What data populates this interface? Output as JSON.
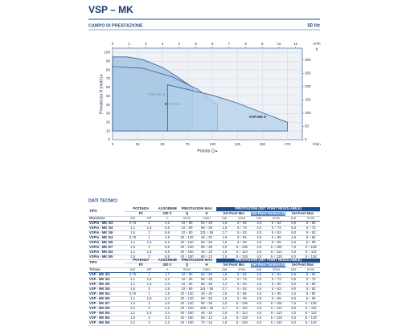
{
  "header": {
    "title": "VSP – MK"
  },
  "chart_data": {
    "type": "area",
    "title": "CAMPO DI PRESTAZIONE",
    "subtitle": "50 Hz",
    "x_label": "Portata Q ▸",
    "y_label": "Prevalenza H (metri) ▸",
    "x_unit": "l/min",
    "x2_unit": "m³/h",
    "y2_unit": "ft",
    "xlim": [
      0,
      190
    ],
    "xticks": [
      0,
      25,
      50,
      75,
      100,
      125,
      150,
      175
    ],
    "x2lim": [
      0,
      11.4
    ],
    "x2ticks": [
      0,
      1,
      2,
      3,
      4,
      5,
      6,
      7,
      8,
      9,
      10,
      11
    ],
    "ylim": [
      0,
      105
    ],
    "yticks": [
      0,
      10,
      20,
      30,
      40,
      50,
      60,
      70,
      80,
      90,
      100
    ],
    "y2lim": [
      0,
      344.5
    ],
    "y2ticks": [
      0,
      50,
      100,
      150,
      200,
      250,
      300
    ],
    "grid": true,
    "series": [
      {
        "name": "VSP-MK 3",
        "color": "#9dbfe0",
        "x": [
          0,
          15,
          30,
          50,
          65,
          80,
          80,
          0
        ],
        "values": [
          95,
          95,
          92,
          83,
          72,
          60,
          10,
          10
        ]
      },
      {
        "name": "VSP-MK 5",
        "color": "#a9c8e6",
        "x": [
          0,
          30,
          60,
          85,
          105,
          105,
          0
        ],
        "values": [
          84,
          82,
          72,
          58,
          40,
          10,
          10
        ]
      },
      {
        "name": "VSP-MK 8",
        "color": "#b4d0ea",
        "x": [
          55,
          100,
          125,
          150,
          175,
          175,
          55
        ],
        "values": [
          63,
          51,
          42,
          31,
          20,
          10,
          10
        ]
      }
    ]
  },
  "section": {
    "title": "DATI TECNICI"
  },
  "tables": [
    {
      "head": {
        "tipo": "TIPO",
        "potenza": "POTENZA",
        "p2": "P2",
        "assorbimenti": "ASSORBIMENTI",
        "voltage": "230 V",
        "prestazioni_max": "PRESTAZIONI MAX",
        "q": "Q",
        "h": "H",
        "prestazioni_set": "PRESTAZIONI (SET POINT REGOLABILE)",
        "set_min": "Set Point Min",
        "set_std": "Set Point Taratura Std",
        "set_max": "Set Point Max",
        "group": "Monofase",
        "units": [
          "kW",
          "HP",
          "A",
          "l/min",
          "metri",
          "bar",
          "l/min",
          "bar",
          "l/min",
          "bar",
          "l/min"
        ]
      },
      "rows": [
        [
          "VSPm - MK 3/3",
          "0,75",
          "1",
          "4,2",
          "10 ÷ 80",
          "52 ÷ 29",
          "1,6",
          "5 ÷ 52",
          "4,0",
          "5 ÷ 52",
          "5,5",
          "5 ÷ 52"
        ],
        [
          "VSPm - MK 3/4",
          "1,1",
          "1,5",
          "5,6",
          "10 ÷ 80",
          "68 ÷ 38",
          "1,6",
          "5 ÷ 73",
          "4,0",
          "5 ÷ 73",
          "6,5",
          "5 ÷ 73"
        ],
        [
          "VSPm - MK 3/6",
          "1,5",
          "2",
          "8,6",
          "10 ÷ 80",
          "101 ÷ 58",
          "2,7",
          "5 ÷ 83",
          "4,0",
          "5 ÷ 83",
          "9,0",
          "5 ÷ 83"
        ],
        [
          "VSPm - MK 5/4",
          "0,75",
          "1",
          "4,9",
          "20 ÷ 120",
          "48 ÷ 20",
          "1,6",
          "5 ÷ 85",
          "4,0",
          "5 ÷ 85",
          "4,5",
          "5 ÷ 85"
        ],
        [
          "VSPm - MK 5/5",
          "1,1",
          "1,5",
          "6,2",
          "20 ÷ 120",
          "60 ÷ 25",
          "1,6",
          "5 ÷ 99",
          "4,0",
          "5 ÷ 99",
          "5,5",
          "5 ÷ 99"
        ],
        [
          "VSPm - MK 5/7",
          "1,5",
          "2",
          "8,5",
          "20 ÷ 120",
          "85 ÷ 36",
          "2,0",
          "5 ÷ 105",
          "4,0",
          "5 ÷ 105",
          "7,5",
          "5 ÷ 105"
        ],
        [
          "VSPm - MK 8/4",
          "1,1",
          "1,5",
          "6,8",
          "40 ÷ 180",
          "46 ÷ 10",
          "1,6",
          "5 ÷ 113",
          "4,0",
          "5 ÷ 113",
          "4,0",
          "5 ÷ 113"
        ],
        [
          "VSPm - MK 8/5",
          "1,5",
          "2",
          "8,5",
          "40 ÷ 180",
          "58 ÷ 13",
          "1,6",
          "5 ÷ 128",
          "4,0",
          "5 ÷ 128",
          "5,0",
          "5 ÷ 128"
        ]
      ]
    },
    {
      "head": {
        "tipo": "TIPO",
        "potenza": "POTENZA",
        "p2": "P2",
        "assorbimenti": "ASSORBIMENTI",
        "voltage": "400 V",
        "prestazioni_max": "PRESTAZIONI MAX",
        "q": "Q",
        "h": "H",
        "prestazioni_set": "PRESTAZIONI (SET POINT REGOLABILE)",
        "set_min": "Set Point Min",
        "set_std": "Set Point Taratura Std",
        "set_max": "Set Point Max",
        "group": "Trifase",
        "units": [
          "kW",
          "HP",
          "A",
          "l/min",
          "metri",
          "bar",
          "l/min",
          "bar",
          "l/min",
          "bar",
          "l/min"
        ]
      },
      "rows": [
        [
          "VSP - MK 3/3",
          "0,75",
          "1",
          "1,7",
          "10 ÷ 80",
          "52 ÷ 29",
          "1,6",
          "5 ÷ 52",
          "4,0",
          "5 ÷ 52",
          "5,5",
          "5 ÷ 52"
        ],
        [
          "VSP - MK 3/4",
          "1,1",
          "1,5",
          "2,2",
          "10 ÷ 80",
          "68 ÷ 38",
          "1,6",
          "5 ÷ 73",
          "4,0",
          "5 ÷ 73",
          "6,5",
          "5 ÷ 73"
        ],
        [
          "VSP - MK 3/5",
          "1,1",
          "1,5",
          "2,3",
          "10 ÷ 80",
          "85 ÷ 48",
          "2,2",
          "5 ÷ 80",
          "4,0",
          "5 ÷ 80",
          "8,0",
          "5 ÷ 80"
        ],
        [
          "VSP - MK 3/6",
          "1,5",
          "2",
          "2,6",
          "10 ÷ 80",
          "101 ÷ 58",
          "2,7",
          "5 ÷ 83",
          "4,0",
          "5 ÷ 83",
          "9,0",
          "5 ÷ 83"
        ],
        [
          "VSP - MK 5/4",
          "0,75",
          "1",
          "1,8",
          "20 ÷ 120",
          "48 ÷ 20",
          "1,6",
          "5 ÷ 85",
          "4,0",
          "5 ÷ 85",
          "4,5",
          "5 ÷ 85"
        ],
        [
          "VSP - MK 5/5",
          "1,1",
          "1,5",
          "2,4",
          "20 ÷ 120",
          "60 ÷ 25",
          "1,6",
          "5 ÷ 99",
          "4,0",
          "5 ÷ 99",
          "5,5",
          "5 ÷ 99"
        ],
        [
          "VSP - MK 5/7",
          "1,5",
          "2",
          "3,0",
          "20 ÷ 120",
          "85 ÷ 36",
          "2,0",
          "5 ÷ 105",
          "4,0",
          "5 ÷ 105",
          "7,5",
          "5 ÷ 105"
        ],
        [
          "VSP - MK 5/9",
          "2,2",
          "3",
          "4,2",
          "20 ÷ 120",
          "108 ÷ 46",
          "2,7",
          "5 ÷ 110",
          "4,0",
          "5 ÷ 110",
          "9,5",
          "5 ÷ 110"
        ],
        [
          "VSP - MK 8/4",
          "1,1",
          "1,5",
          "2,4",
          "40 ÷ 180",
          "46 ÷ 10",
          "1,6",
          "5 ÷ 113",
          "4,0",
          "5 ÷ 113",
          "4,0",
          "5 ÷ 113"
        ],
        [
          "VSP - MK 8/5",
          "1,5",
          "2",
          "3,2",
          "40 ÷ 180",
          "58 ÷ 13",
          "1,6",
          "5 ÷ 128",
          "4,0",
          "5 ÷ 128",
          "5,0",
          "5 ÷ 128"
        ],
        [
          "VSP - MK 8/6",
          "2,2",
          "3",
          "4,2",
          "40 ÷ 180",
          "70 ÷ 16",
          "1,8",
          "5 ÷ 140",
          "4,0",
          "5 ÷ 140",
          "6,0",
          "5 ÷ 140"
        ]
      ]
    }
  ]
}
